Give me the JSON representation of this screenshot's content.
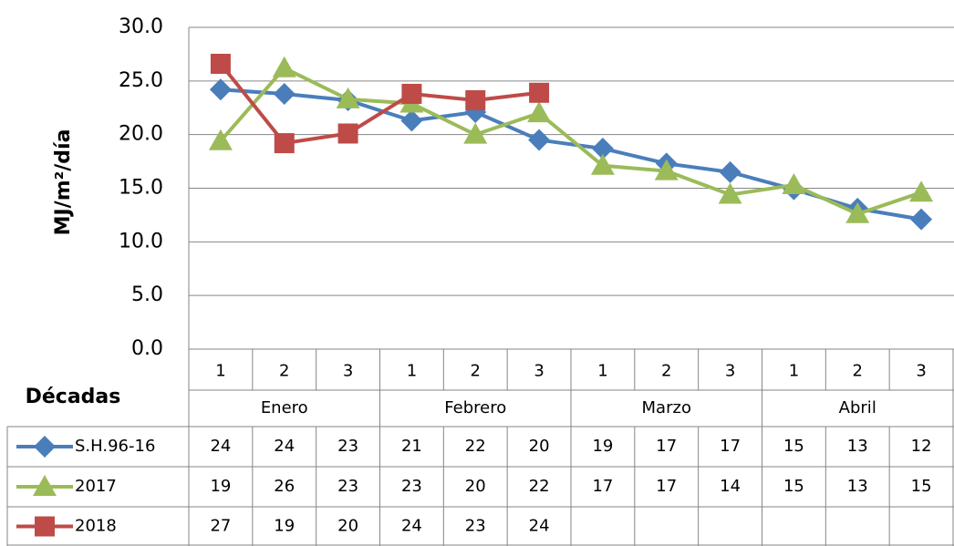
{
  "chart_data": {
    "type": "line",
    "ylabel": "MJ/m²/día",
    "xlabel": "Décadas",
    "categories": [
      "1",
      "2",
      "3",
      "1",
      "2",
      "3",
      "1",
      "2",
      "3",
      "1",
      "2",
      "3"
    ],
    "groups": [
      "Enero",
      "Febrero",
      "Marzo",
      "Abril"
    ],
    "ylim": [
      0,
      30
    ],
    "yticks": [
      {
        "value": 0,
        "label": "0.0"
      },
      {
        "value": 5,
        "label": "5.0"
      },
      {
        "value": 10,
        "label": "10.0"
      },
      {
        "value": 15,
        "label": "15.0"
      },
      {
        "value": 20,
        "label": "20.0"
      },
      {
        "value": 25,
        "label": "25.0"
      },
      {
        "value": 30,
        "label": "30.0"
      }
    ],
    "grid": true,
    "series": [
      {
        "name": "S.H.96-16",
        "color": "#4a7ebb",
        "marker": "diamond",
        "values": [
          24.2,
          23.8,
          23.2,
          21.3,
          22.1,
          19.5,
          18.7,
          17.3,
          16.5,
          14.9,
          13.1,
          12.1
        ],
        "value_labels": [
          "24",
          "24",
          "23",
          "21",
          "22",
          "20",
          "19",
          "17",
          "17",
          "15",
          "13",
          "12"
        ]
      },
      {
        "name": "2017",
        "color": "#9bbb59",
        "marker": "triangle",
        "values": [
          19.4,
          26.2,
          23.3,
          22.9,
          20.0,
          22.0,
          17.1,
          16.6,
          14.4,
          15.3,
          12.6,
          14.6
        ],
        "value_labels": [
          "19",
          "26",
          "23",
          "23",
          "20",
          "22",
          "17",
          "17",
          "14",
          "15",
          "13",
          "15"
        ]
      },
      {
        "name": "2018",
        "color": "#be4b48",
        "marker": "square",
        "values": [
          26.6,
          19.2,
          20.1,
          23.8,
          23.2,
          23.9,
          null,
          null,
          null,
          null,
          null,
          null
        ],
        "value_labels": [
          "27",
          "19",
          "20",
          "24",
          "23",
          "24",
          null,
          null,
          null,
          null,
          null,
          null
        ]
      }
    ]
  }
}
